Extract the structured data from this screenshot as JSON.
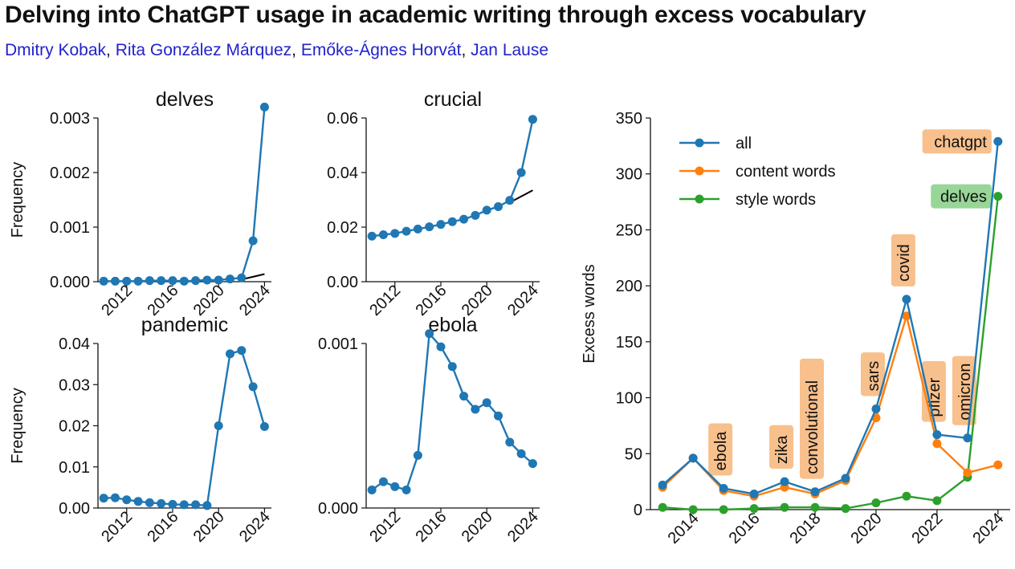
{
  "header": {
    "title": "Delving into ChatGPT usage in academic writing through excess vocabulary",
    "authors": [
      "Dmitry Kobak",
      "Rita González Márquez",
      "Emőke-Ágnes Horvát",
      "Jan Lause"
    ],
    "author_separator": ","
  },
  "colors": {
    "all": "#1f77b4",
    "content": "#ff7f0e",
    "style": "#2ca02c",
    "trend": "#000000",
    "label_content_bg": "#f8c08c",
    "label_style_bg": "#98d698"
  },
  "chart_data": [
    {
      "type": "line",
      "title": "delves",
      "ylabel": "Frequency",
      "x": [
        2010,
        2011,
        2012,
        2013,
        2014,
        2015,
        2016,
        2017,
        2018,
        2019,
        2020,
        2021,
        2022,
        2023,
        2024
      ],
      "xticks": [
        2012,
        2016,
        2020,
        2024
      ],
      "yticks": [
        "0.000",
        "0.001",
        "0.002",
        "0.003"
      ],
      "ylim": [
        0,
        0.003
      ],
      "series": [
        {
          "values": [
            1e-05,
            1e-05,
            1e-05,
            1e-05,
            2e-05,
            2e-05,
            2e-05,
            1e-05,
            2e-05,
            3e-05,
            3e-05,
            5e-05,
            7e-05,
            0.00075,
            0.0032
          ]
        }
      ],
      "trend": {
        "x": [
          2022,
          2024
        ],
        "values": [
          4e-05,
          0.00014
        ]
      }
    },
    {
      "type": "line",
      "title": "crucial",
      "ylabel": "",
      "x": [
        2010,
        2011,
        2012,
        2013,
        2014,
        2015,
        2016,
        2017,
        2018,
        2019,
        2020,
        2021,
        2022,
        2023,
        2024
      ],
      "xticks": [
        2012,
        2016,
        2020,
        2024
      ],
      "yticks": [
        "0.00",
        "0.02",
        "0.04",
        "0.06"
      ],
      "ylim": [
        0,
        0.06
      ],
      "series": [
        {
          "values": [
            0.0167,
            0.0172,
            0.0177,
            0.0185,
            0.0193,
            0.0201,
            0.021,
            0.022,
            0.0229,
            0.0243,
            0.0262,
            0.0275,
            0.0298,
            0.04,
            0.0595
          ]
        }
      ],
      "trend": {
        "x": [
          2022,
          2024
        ],
        "values": [
          0.029,
          0.0335
        ]
      }
    },
    {
      "type": "line",
      "title": "pandemic",
      "ylabel": "Frequency",
      "x": [
        2010,
        2011,
        2012,
        2013,
        2014,
        2015,
        2016,
        2017,
        2018,
        2019,
        2020,
        2021,
        2022,
        2023,
        2024
      ],
      "xticks": [
        2012,
        2016,
        2020,
        2024
      ],
      "yticks": [
        "0.00",
        "0.01",
        "0.02",
        "0.03",
        "0.04"
      ],
      "ylim": [
        0,
        0.04
      ],
      "series": [
        {
          "values": [
            0.0024,
            0.0025,
            0.002,
            0.0016,
            0.0013,
            0.0011,
            0.0009,
            0.0008,
            0.0008,
            0.0006,
            0.02,
            0.0375,
            0.0383,
            0.0295,
            0.0198
          ]
        }
      ]
    },
    {
      "type": "line",
      "title": "ebola",
      "ylabel": "",
      "x": [
        2010,
        2011,
        2012,
        2013,
        2014,
        2015,
        2016,
        2017,
        2018,
        2019,
        2020,
        2021,
        2022,
        2023,
        2024
      ],
      "xticks": [
        2012,
        2016,
        2020,
        2024
      ],
      "yticks": [
        "0.000",
        "0.001"
      ],
      "ylim": [
        0,
        0.001
      ],
      "series": [
        {
          "values": [
            0.00011,
            0.00016,
            0.00013,
            0.00011,
            0.00032,
            0.00106,
            0.00098,
            0.00086,
            0.00068,
            0.0006,
            0.00064,
            0.00056,
            0.0004,
            0.00033,
            0.00027
          ]
        }
      ]
    },
    {
      "type": "line",
      "title": "",
      "ylabel": "Excess words",
      "x": [
        2013,
        2014,
        2015,
        2016,
        2017,
        2018,
        2019,
        2020,
        2021,
        2022,
        2023,
        2024
      ],
      "xticks": [
        2014,
        2016,
        2018,
        2020,
        2022,
        2024
      ],
      "yticks": [
        "0",
        "50",
        "100",
        "150",
        "200",
        "250",
        "300",
        "350"
      ],
      "ylim": [
        0,
        350
      ],
      "legend_position": "top-left",
      "series": [
        {
          "name": "all",
          "color": "#1f77b4",
          "values": [
            22,
            46,
            19,
            14,
            25,
            16,
            28,
            90,
            188,
            67,
            64,
            329
          ]
        },
        {
          "name": "content words",
          "color": "#ff7f0e",
          "values": [
            20,
            46,
            17,
            12,
            20,
            14,
            26,
            82,
            173,
            59,
            33,
            40
          ]
        },
        {
          "name": "style words",
          "color": "#2ca02c",
          "values": [
            2,
            0,
            0,
            1,
            2,
            2,
            1,
            6,
            12,
            8,
            29,
            280
          ]
        }
      ],
      "annotations": [
        {
          "text": "ebola",
          "x": 2015,
          "kind": "content",
          "rotated": true
        },
        {
          "text": "zika",
          "x": 2017,
          "kind": "content",
          "rotated": true
        },
        {
          "text": "convolutional",
          "x": 2018,
          "kind": "content",
          "rotated": true
        },
        {
          "text": "sars",
          "x": 2020,
          "kind": "content",
          "rotated": true
        },
        {
          "text": "covid",
          "x": 2021,
          "kind": "content",
          "rotated": true
        },
        {
          "text": "pfizer",
          "x": 2022,
          "kind": "content",
          "rotated": true
        },
        {
          "text": "omicron",
          "x": 2023,
          "kind": "content",
          "rotated": true
        },
        {
          "text": "chatgpt",
          "x": 2024,
          "kind": "content",
          "rotated": false
        },
        {
          "text": "delves",
          "x": 2024,
          "kind": "style",
          "rotated": false
        }
      ]
    }
  ]
}
